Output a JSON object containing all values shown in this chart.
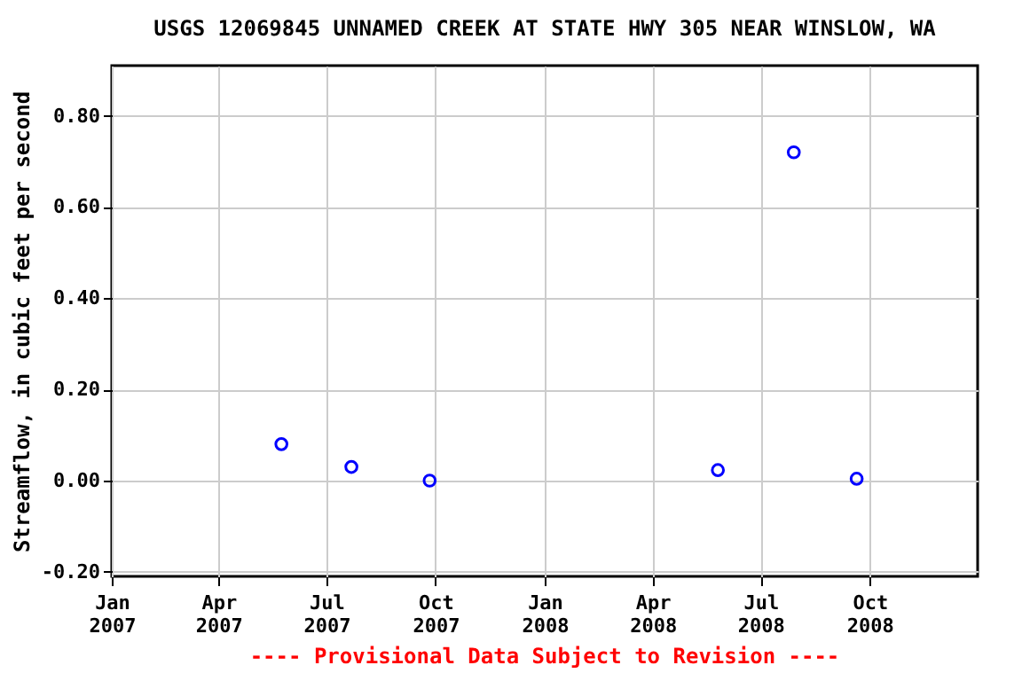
{
  "chart_data": {
    "type": "scatter",
    "title": "USGS 12069845 UNNAMED CREEK AT STATE HWY 305 NEAR WINSLOW, WA",
    "ylabel": "Streamflow, in cubic feet per second",
    "annotations": [
      "---- Provisional Data Subject to Revision ----"
    ],
    "x": [
      "2007-05-24",
      "2007-07-22",
      "2007-09-26",
      "2008-05-26",
      "2008-07-29",
      "2008-09-20"
    ],
    "series": [
      {
        "color": "#0000ff",
        "values": [
          0.08,
          0.03,
          0.0,
          0.023,
          0.72,
          0.004
        ]
      }
    ],
    "marker": "circle",
    "xlim": [
      "2007-01-01",
      "2008-12-31"
    ],
    "xticks": [
      {
        "value": "2007-01-01",
        "label": "Jan 2007"
      },
      {
        "value": "2007-04-01",
        "label": "Apr 2007"
      },
      {
        "value": "2007-07-01",
        "label": "Jul 2007"
      },
      {
        "value": "2007-10-01",
        "label": "Oct 2007"
      },
      {
        "value": "2008-01-01",
        "label": "Jan 2008"
      },
      {
        "value": "2008-04-01",
        "label": "Apr 2008"
      },
      {
        "value": "2008-07-01",
        "label": "Jul 2008"
      },
      {
        "value": "2008-10-01",
        "label": "Oct 2008"
      }
    ],
    "ylim": [
      -0.21,
      0.91
    ],
    "yticks": [
      {
        "value": -0.2,
        "label": "-0.20"
      },
      {
        "value": 0.0,
        "label": "0.00"
      },
      {
        "value": 0.2,
        "label": "0.20"
      },
      {
        "value": 0.4,
        "label": "0.40"
      },
      {
        "value": 0.6,
        "label": "0.60"
      },
      {
        "value": 0.8,
        "label": "0.80"
      }
    ],
    "grid": true
  }
}
